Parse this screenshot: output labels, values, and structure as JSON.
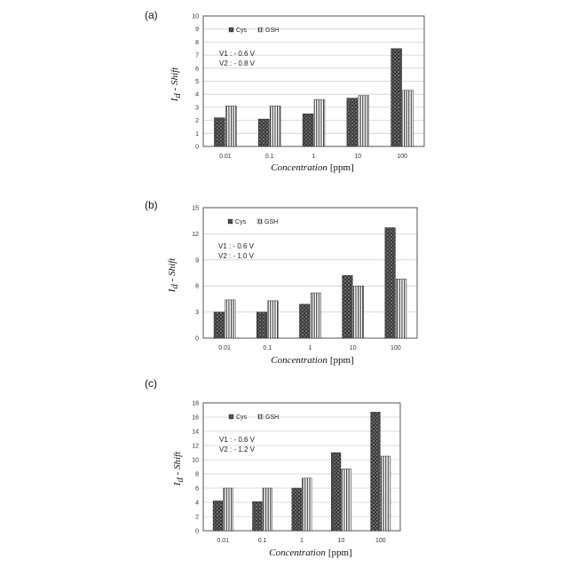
{
  "chart_data": [
    {
      "type": "bar",
      "panel_label": "(a)",
      "categories": [
        "0.01",
        "0.1",
        "1",
        "10",
        "100"
      ],
      "series": [
        {
          "name": "Cys",
          "values": [
            2.2,
            2.1,
            2.5,
            3.7,
            7.5
          ]
        },
        {
          "name": "GSH",
          "values": [
            3.1,
            3.1,
            3.6,
            3.9,
            4.3
          ]
        }
      ],
      "yticks": [
        "0",
        "1",
        "2",
        "3",
        "4",
        "5",
        "6",
        "7",
        "8",
        "9",
        "10"
      ],
      "ylim": [
        0,
        10
      ],
      "annotations": [
        "V1 : - 0.6 V",
        "V2 : - 0.8 V"
      ],
      "xlabel": "Concentration",
      "xunit": "[ppm]",
      "ylabel": "I",
      "ylabel_sub": "d",
      "ylabel_rest": " - Shift",
      "grid": "horizontal",
      "legend": "top-left"
    },
    {
      "type": "bar",
      "panel_label": "(b)",
      "categories": [
        "0.01",
        "0.1",
        "1",
        "10",
        "100"
      ],
      "series": [
        {
          "name": "Cys",
          "values": [
            3.0,
            3.0,
            3.9,
            7.2,
            12.7
          ]
        },
        {
          "name": "GSH",
          "values": [
            4.4,
            4.3,
            5.2,
            6.0,
            6.8
          ]
        }
      ],
      "yticks": [
        "0",
        "3",
        "6",
        "9",
        "12",
        "15"
      ],
      "ylim": [
        0,
        15
      ],
      "annotations": [
        "V1 : - 0.6 V",
        "V2 : - 1.0 V"
      ],
      "xlabel": "Concentration",
      "xunit": "[ppm]",
      "ylabel": "I",
      "ylabel_sub": "d",
      "ylabel_rest": " - Shift",
      "grid": "horizontal",
      "legend": "top-left"
    },
    {
      "type": "bar",
      "panel_label": "(c)",
      "categories": [
        "0.01",
        "0.1",
        "1",
        "10",
        "100"
      ],
      "series": [
        {
          "name": "Cys",
          "values": [
            4.2,
            4.1,
            6.0,
            11.0,
            16.7
          ]
        },
        {
          "name": "GSH",
          "values": [
            6.0,
            6.0,
            7.4,
            8.7,
            10.5
          ]
        }
      ],
      "yticks": [
        "0",
        "2",
        "4",
        "6",
        "8",
        "10",
        "12",
        "14",
        "16",
        "18"
      ],
      "ylim": [
        0,
        18
      ],
      "annotations": [
        "V1 : - 0.6 V",
        "V2 : - 1.2 V"
      ],
      "xlabel": "Concentration",
      "xunit": "[ppm]",
      "ylabel": "I",
      "ylabel_sub": "d",
      "ylabel_rest": " - Shift",
      "grid": "horizontal",
      "legend": "top-left"
    }
  ],
  "colors": {
    "cys_fill": "#3a3a3a",
    "cys_pattern": "#6a6a6a",
    "gsh_fill": "#ffffff",
    "gsh_stripe": "#3a3a3a",
    "grid": "#cfcfcf",
    "frame": "#444444"
  }
}
